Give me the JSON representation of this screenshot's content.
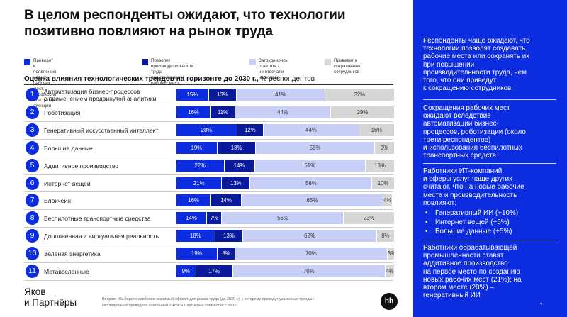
{
  "title": "В целом респонденты ожидают, что технологии\nпозитивно повлияют на рынок труда",
  "chart_data": {
    "type": "bar",
    "title": "Оценка влияния технологических трендов на горизонте до 2030 г.,",
    "unit": "% респондентов",
    "stacked": true,
    "orientation": "horizontal",
    "categories": [
      "Автоматизация бизнес-процессов\nс применением продвинутой аналитики",
      "Роботизация",
      "Генеративный искусственный интеллект",
      "Большие данные",
      "Аддитивное производство",
      "Интернет вещей",
      "Блокчейн",
      "Беспилотные транспортные средства",
      "Дополненная и виртуальная реальность",
      "Зеленая энергетика",
      "Метавселенные"
    ],
    "series": [
      {
        "name": "Приведет к появлению новых рабочих\nмест, профессий или целых функций",
        "color": "#0c2ce0",
        "values": [
          15,
          16,
          28,
          19,
          22,
          21,
          16,
          14,
          18,
          19,
          9
        ]
      },
      {
        "name": "Позволит производительности труда\nпри сохранении рабочих мест",
        "color": "#0a1a9c",
        "values": [
          13,
          11,
          12,
          18,
          14,
          13,
          14,
          7,
          13,
          8,
          17
        ]
      },
      {
        "name": "Затруднились ответить /\nне отвечали на вопрос",
        "color": "#c8cff7",
        "values": [
          41,
          44,
          44,
          55,
          51,
          56,
          65,
          56,
          62,
          70,
          70
        ]
      },
      {
        "name": "Приведет к сокращению\nсотрудников",
        "color": "#d6d6d6",
        "values": [
          32,
          29,
          16,
          9,
          13,
          10,
          4,
          23,
          8,
          3,
          4
        ]
      }
    ],
    "xlim": [
      0,
      100
    ]
  },
  "logo_text": "Яков\nи Партнёры",
  "footnote": {
    "line1": "Вопрос: «Выберите наиболее значимый эффект для рынка труда (до 2030 г.), к которому приведут указанные тренды»",
    "line2": "Исследование проведено компанией «Яков и Партнёры» совместно с hh.ru"
  },
  "hh_logo": "hh",
  "panel": {
    "block1": "Респонденты чаще ожидают, что\nтехнологии позволят создавать\nрабочие места или сохранять их\nпри повышении\nпроизводительности труда, чем\nтого, что они приведут\nк сокращению сотрудников",
    "block2": "Сокращения рабочих мест\nожидают вследствие\nавтоматизации бизнес-\nпроцессов, роботизации (около\nтрети респондентов)\nи использования беспилотных\nтранспортных средств",
    "block3_intro": "Работники ИТ-компаний\nи сферы услуг чаще других\nсчитают, что на новые рабочие\nместа и производительность\nповлияют:",
    "block3_bullets": [
      "Генеративный ИИ (+10%)",
      "Интернет вещей (+5%)",
      "Большие данные (+5%)"
    ],
    "block4": "Работники обрабатывающей\nпромышленности ставят\nаддитивное производство\nна первое место по созданию\nновых рабочих мест (21%); на\nвтором месте (20%) –\nгенеративный ИИ"
  },
  "page_number": "7"
}
